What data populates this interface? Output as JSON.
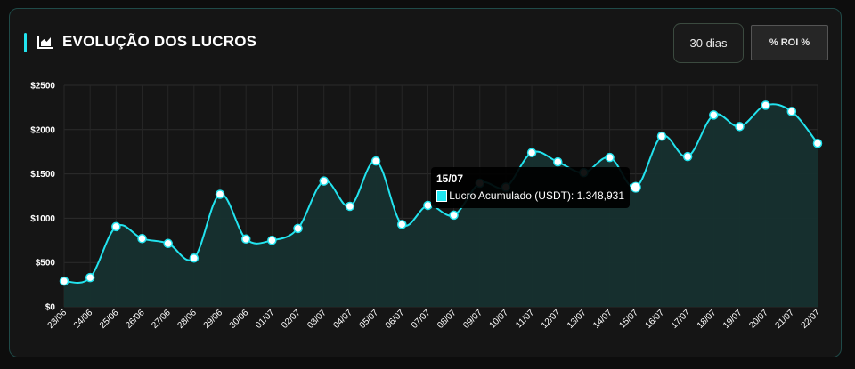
{
  "header": {
    "title": "EVOLUÇÃO DOS LUCROS",
    "icon": "area-chart-icon",
    "period_label": "30 dias",
    "roi_label": "% ROI %"
  },
  "colors": {
    "accent": "#22e3ee",
    "panel_bg": "#151515",
    "panel_border": "#1f4a48",
    "area_fill": "#16302f"
  },
  "tooltip": {
    "date": "15/07",
    "line": "Lucro Acumulado (USDT): 1.348,931"
  },
  "chart_data": {
    "type": "area",
    "categories": [
      "23/06",
      "24/06",
      "25/06",
      "26/06",
      "27/06",
      "28/06",
      "29/06",
      "30/06",
      "01/07",
      "02/07",
      "03/07",
      "04/07",
      "05/07",
      "06/07",
      "07/07",
      "08/07",
      "09/07",
      "10/07",
      "11/07",
      "12/07",
      "13/07",
      "14/07",
      "15/07",
      "16/07",
      "17/07",
      "18/07",
      "19/07",
      "20/07",
      "21/07",
      "22/07"
    ],
    "series": [
      {
        "name": "Lucro Acumulado (USDT)",
        "values": [
          290,
          330,
          905,
          770,
          715,
          550,
          1270,
          765,
          750,
          885,
          1420,
          1135,
          1645,
          930,
          1145,
          1035,
          1395,
          1350,
          1740,
          1635,
          1515,
          1685,
          1348.931,
          1925,
          1695,
          2165,
          2035,
          2275,
          2205,
          1845
        ]
      }
    ],
    "y_ticks": [
      "$0",
      "$500",
      "$1000",
      "$1500",
      "$2000",
      "$2500"
    ],
    "ylim": [
      0,
      2500
    ],
    "grid": true,
    "highlight_index": 22,
    "legend": "none"
  }
}
